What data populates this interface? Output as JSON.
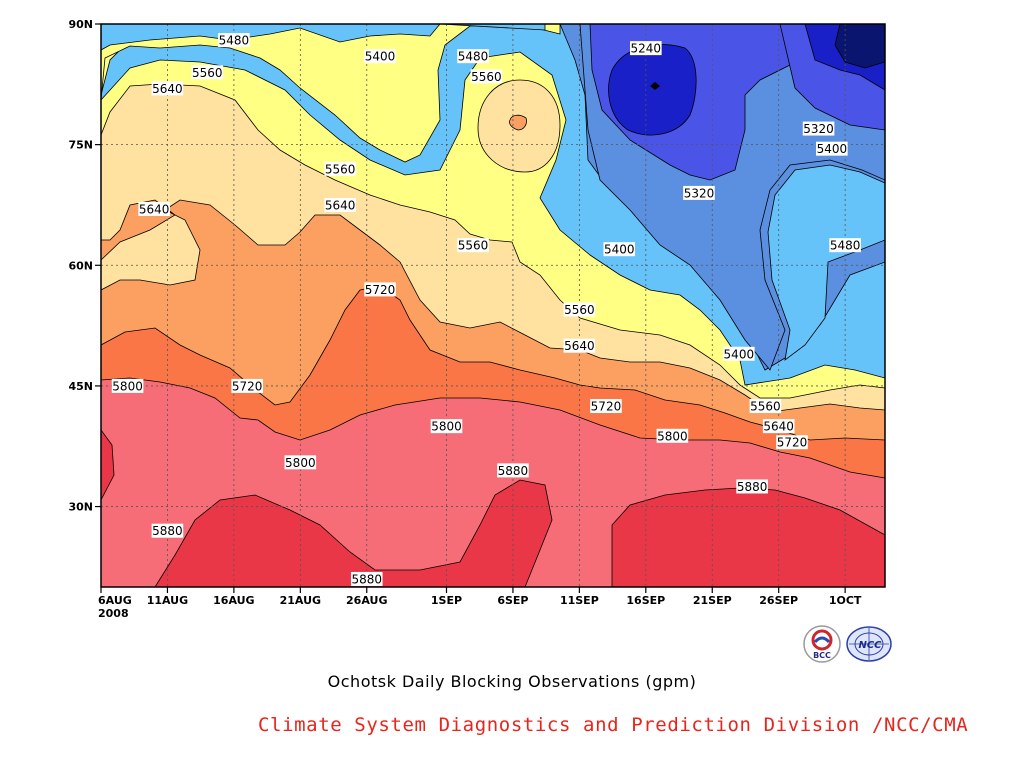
{
  "chart_data": {
    "type": "heatmap",
    "title": "Ochotsk Daily Blocking Observations (gpm)",
    "x_ticks": [
      "6AUG\n2008",
      "11AUG",
      "16AUG",
      "21AUG",
      "26AUG",
      "1SEP",
      "6SEP",
      "11SEP",
      "16SEP",
      "21SEP",
      "26SEP",
      "1OCT"
    ],
    "xlim": [
      "2008-08-06",
      "2008-10-04"
    ],
    "y_ticks": [
      "90N",
      "75N",
      "60N",
      "45N",
      "30N"
    ],
    "ylim": [
      20,
      90
    ],
    "grid": true,
    "contour_levels": [
      5240,
      5320,
      5400,
      5480,
      5560,
      5640,
      5720,
      5800,
      5880
    ],
    "level_colors": {
      "lt5240": "#0a156f",
      "5240-5320": "#1a20c8",
      "5320-5400": "#4a54e6",
      "5400-5480": "#5b8fe0",
      "5480-5560": "#66c3fa",
      "5560-5640": "#ffff83",
      "5640-5720": "#ffe1a0",
      "5720-5800": "#fca062",
      "5800-5880": "#fb7646",
      "gt5880": "#f66d78",
      "max": "#ea3747"
    },
    "contour_labels": [
      {
        "text": "5480",
        "date": "2008-08-16",
        "lat": 88
      },
      {
        "text": "5400",
        "date": "2008-08-27",
        "lat": 86
      },
      {
        "text": "5480",
        "date": "2008-09-03",
        "lat": 86
      },
      {
        "text": "5240",
        "date": "2008-09-16",
        "lat": 87
      },
      {
        "text": "5560",
        "date": "2008-08-14",
        "lat": 84
      },
      {
        "text": "5560",
        "date": "2008-09-04",
        "lat": 83.5
      },
      {
        "text": "5640",
        "date": "2008-08-11",
        "lat": 82
      },
      {
        "text": "5320",
        "date": "2008-09-29",
        "lat": 77
      },
      {
        "text": "5400",
        "date": "2008-09-30",
        "lat": 74.5
      },
      {
        "text": "5560",
        "date": "2008-08-24",
        "lat": 72
      },
      {
        "text": "5320",
        "date": "2008-09-20",
        "lat": 69
      },
      {
        "text": "5640",
        "date": "2008-08-10",
        "lat": 67
      },
      {
        "text": "5640",
        "date": "2008-08-24",
        "lat": 67.5
      },
      {
        "text": "5560",
        "date": "2008-09-03",
        "lat": 62.5
      },
      {
        "text": "5400",
        "date": "2008-09-14",
        "lat": 62
      },
      {
        "text": "5480",
        "date": "2008-10-01",
        "lat": 62.5
      },
      {
        "text": "5720",
        "date": "2008-08-27",
        "lat": 57
      },
      {
        "text": "5560",
        "date": "2008-09-11",
        "lat": 54.5
      },
      {
        "text": "5640",
        "date": "2008-09-11",
        "lat": 50
      },
      {
        "text": "5400",
        "date": "2008-09-23",
        "lat": 49
      },
      {
        "text": "5800",
        "date": "2008-08-08",
        "lat": 45
      },
      {
        "text": "5720",
        "date": "2008-08-17",
        "lat": 45
      },
      {
        "text": "5560",
        "date": "2008-09-25",
        "lat": 42.5
      },
      {
        "text": "5720",
        "date": "2008-09-13",
        "lat": 42.5
      },
      {
        "text": "5640",
        "date": "2008-09-26",
        "lat": 40
      },
      {
        "text": "5800",
        "date": "2008-09-01",
        "lat": 40
      },
      {
        "text": "5800",
        "date": "2008-09-18",
        "lat": 38.8
      },
      {
        "text": "5720",
        "date": "2008-09-27",
        "lat": 38
      },
      {
        "text": "5800",
        "date": "2008-08-21",
        "lat": 35.5
      },
      {
        "text": "5880",
        "date": "2008-09-06",
        "lat": 34.5
      },
      {
        "text": "5880",
        "date": "2008-09-24",
        "lat": 32.5
      },
      {
        "text": "5880",
        "date": "2008-08-11",
        "lat": 27
      },
      {
        "text": "5880",
        "date": "2008-08-26",
        "lat": 21
      }
    ]
  },
  "credit": "Climate System Diagnostics and Prediction Division /NCC/CMA",
  "logos": [
    {
      "icon": "bcc-logo",
      "text": "BCC"
    },
    {
      "icon": "ncc-logo",
      "text": "NCC"
    }
  ]
}
